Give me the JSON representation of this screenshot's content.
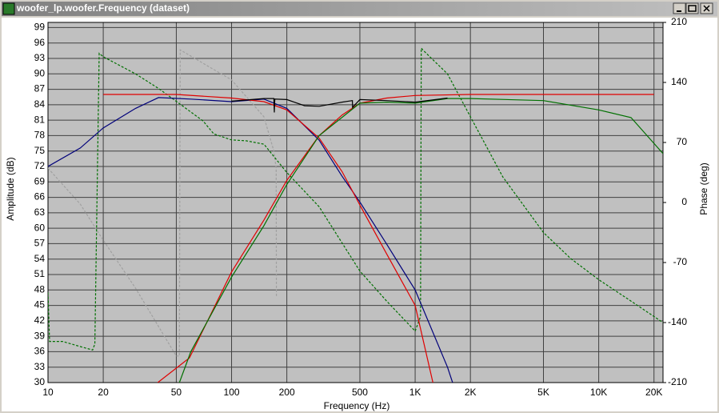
{
  "window_title": "woofer_lp.woofer.Frequency (dataset)",
  "chart_data": {
    "type": "line",
    "xlabel": "Frequency (Hz)",
    "ylabel": "Amplitude (dB)",
    "y2label": "Phase (deg)",
    "xscale": "log",
    "grid": true,
    "xlim": [
      10,
      22400
    ],
    "ylim": [
      30,
      100
    ],
    "y2lim": [
      -210,
      210
    ],
    "xticks": [
      10,
      20,
      50,
      100,
      200,
      500,
      {
        "value": 1000,
        "label": "1K"
      },
      {
        "value": 2000,
        "label": "2K"
      },
      {
        "value": 5000,
        "label": "5K"
      },
      {
        "value": 10000,
        "label": "10K"
      },
      {
        "value": 20000,
        "label": "20K"
      }
    ],
    "yticks": [
      30,
      33,
      36,
      39,
      42,
      45,
      48,
      51,
      54,
      57,
      60,
      63,
      66,
      69,
      72,
      75,
      78,
      81,
      84,
      87,
      90,
      93,
      96,
      99
    ],
    "y2ticks": [
      -210,
      -140,
      -70,
      0,
      70,
      140,
      210
    ],
    "series": [
      {
        "color": "#a0a0a0",
        "axis": "y2",
        "dash": true,
        "x": [
          10,
          15,
          20,
          30,
          50,
          52,
          52.5,
          80,
          100,
          150,
          170,
          175,
          175.5
        ],
        "values": [
          40,
          -2,
          -44,
          -100,
          -179,
          -179,
          178,
          155,
          143,
          100,
          60,
          40,
          -110
        ]
      },
      {
        "color": "#007000",
        "axis": "y2",
        "dash": true,
        "x": [
          10,
          10.2,
          12,
          15,
          17.5,
          18,
          19,
          20,
          30,
          40,
          50,
          70,
          80,
          100,
          120,
          150,
          200,
          300,
          500,
          700,
          1000,
          1070,
          1080,
          1100,
          1500,
          2000,
          3000,
          5000,
          7000,
          10000,
          15000,
          22400
        ],
        "values": [
          -105,
          -162,
          -162,
          -168,
          -172,
          -165,
          174,
          170,
          150,
          133,
          118,
          95,
          80,
          73,
          72,
          68,
          35,
          -5,
          -80,
          -115,
          -150,
          -133,
          180,
          178,
          150,
          100,
          30,
          -35,
          -65,
          -90,
          -115,
          -140
        ]
      },
      {
        "color": "#00007a",
        "axis": "y",
        "dash": false,
        "x": [
          10,
          15,
          20,
          30,
          40,
          60,
          100,
          150,
          200,
          300,
          400,
          500,
          700,
          1000,
          1500,
          1600
        ],
        "values": [
          72,
          75.6,
          79.5,
          83.3,
          85.4,
          85.1,
          84.6,
          85.1,
          83.3,
          77.1,
          70.1,
          65.1,
          56.9,
          48,
          33,
          30
        ]
      },
      {
        "color": "#e00000",
        "axis": "y",
        "dash": false,
        "x": [
          20,
          50,
          100,
          150,
          200,
          300,
          400,
          500,
          700,
          1000,
          1250
        ],
        "values": [
          86,
          86,
          85.3,
          84.6,
          83,
          77.5,
          71,
          64.5,
          55,
          45,
          30
        ]
      },
      {
        "color": "#e00000",
        "axis": "y",
        "dash": false,
        "x": [
          39.6,
          59,
          100,
          150,
          200,
          300,
          400,
          500,
          700,
          1000,
          2000,
          20000
        ],
        "values": [
          30,
          34.8,
          51.5,
          61.6,
          69.3,
          78,
          82,
          84.3,
          85.3,
          85.8,
          86,
          86
        ]
      },
      {
        "color": "#007000",
        "axis": "y",
        "dash": false,
        "x": [
          52,
          60,
          100,
          150,
          200,
          300,
          500,
          700,
          1000,
          1500,
          2000,
          5000,
          10000,
          15000,
          22400
        ],
        "values": [
          30,
          36,
          50.5,
          60.5,
          68.5,
          78,
          84.3,
          84.5,
          84.3,
          85.2,
          85.2,
          84.8,
          83,
          81.5,
          74.5
        ]
      },
      {
        "color": "#000000",
        "axis": "y",
        "dash": false,
        "x": [
          100,
          150,
          170,
          171,
          172,
          200,
          250,
          300,
          400,
          455,
          456,
          500,
          700,
          1000,
          1500
        ],
        "values": [
          84.7,
          85.2,
          85.2,
          82.5,
          85.1,
          85,
          83.8,
          83.7,
          84.5,
          84.8,
          83.5,
          85,
          84.8,
          84.5,
          85.3
        ]
      }
    ]
  }
}
